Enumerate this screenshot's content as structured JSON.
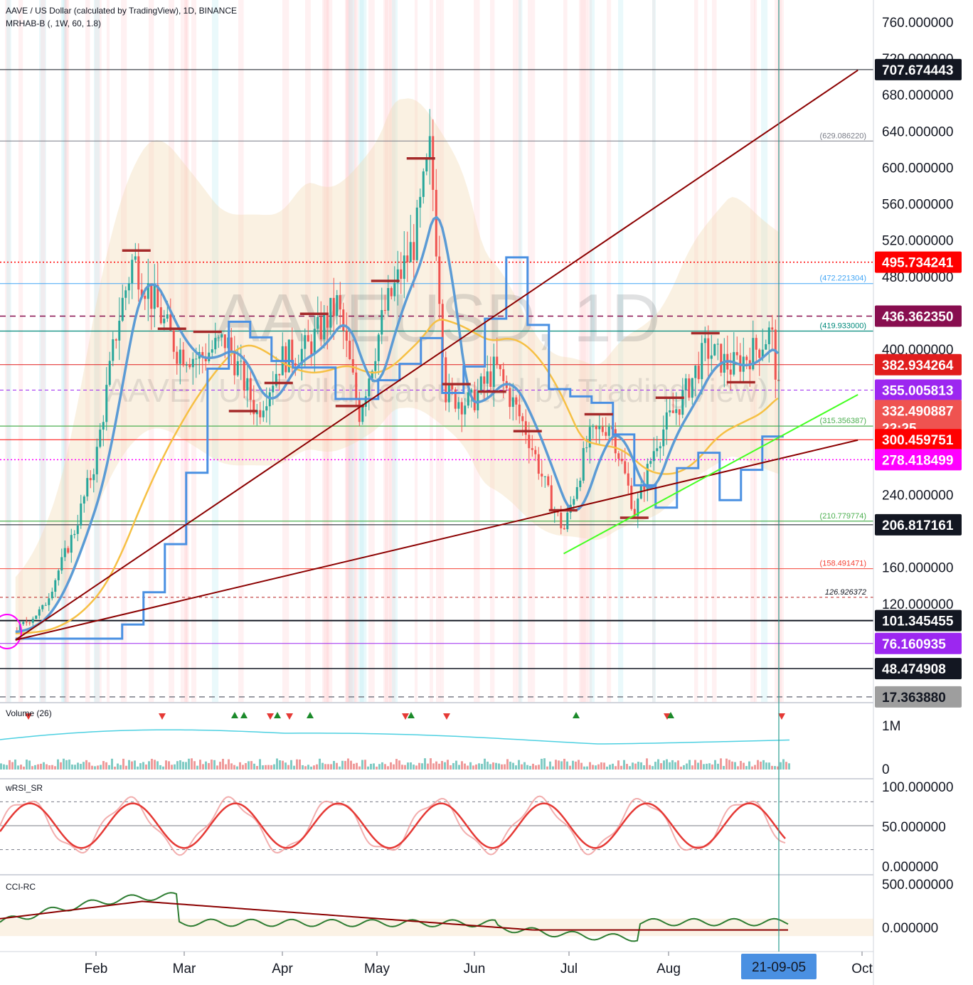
{
  "header": {
    "title": "AAVE / US Dollar (calculated by TradingView), 1D, BINANCE",
    "indicator": "MRHAB-B (, 1W, 60, 1.8)"
  },
  "watermark": {
    "main": "AAVEUSD, 1D",
    "sub": "AAVE / US Dollar (calculated by TradingView)"
  },
  "price_axis_ticks": [
    "760.000000",
    "720.000000",
    "680.000000",
    "640.000000",
    "600.000000",
    "560.000000",
    "520.000000",
    "480.000000",
    "400.000000",
    "240.000000",
    "160.000000",
    "120.000000"
  ],
  "price_tags": [
    {
      "price": 707.674443,
      "label": "707.674443",
      "bg": "#131722",
      "fg": "#ffffff"
    },
    {
      "price": 495.734241,
      "label": "495.734241",
      "bg": "#ff0000",
      "fg": "#ffffff"
    },
    {
      "price": 436.36235,
      "label": "436.362350",
      "bg": "#880e4f",
      "fg": "#ffffff"
    },
    {
      "price": 382.934264,
      "label": "382.934264",
      "bg": "#e11d1d",
      "fg": "#ffffff"
    },
    {
      "price": 355.005813,
      "label": "355.005813",
      "bg": "#9c27f0",
      "fg": "#ffffff"
    },
    {
      "price": 332.490887,
      "label": "332.490887",
      "bg": "#ef5350",
      "fg": "#ffffff",
      "sub": "22:25"
    },
    {
      "price": 300.459751,
      "label": "300.459751",
      "bg": "#ff0000",
      "fg": "#ffffff"
    },
    {
      "price": 278.418499,
      "label": "278.418499",
      "bg": "#ff00ff",
      "fg": "#ffffff"
    },
    {
      "price": 206.817161,
      "label": "206.817161",
      "bg": "#131722",
      "fg": "#ffffff"
    },
    {
      "price": 101.345455,
      "label": "101.345455",
      "bg": "#131722",
      "fg": "#ffffff"
    },
    {
      "price": 76.160935,
      "label": "76.160935",
      "bg": "#9c27f0",
      "fg": "#ffffff"
    },
    {
      "price": 48.474908,
      "label": "48.474908",
      "bg": "#131722",
      "fg": "#ffffff"
    },
    {
      "price": 17.36388,
      "label": "17.363880",
      "bg": "#9e9e9e",
      "fg": "#131722"
    }
  ],
  "level_labels": [
    {
      "price": 629.08622,
      "label": "(629.086220)",
      "color": "#787b86"
    },
    {
      "price": 472.221304,
      "label": "(472.221304)",
      "color": "#42a5f5"
    },
    {
      "price": 419.933,
      "label": "(419.933000)",
      "color": "#00897b"
    },
    {
      "price": 315.356387,
      "label": "(315.356387)",
      "color": "#4caf50"
    },
    {
      "price": 210.779774,
      "label": "(210.779774)",
      "color": "#4caf50"
    },
    {
      "price": 158.491471,
      "label": "(158.491471)",
      "color": "#f44336"
    },
    {
      "price": 126.926372,
      "label": "126.926372",
      "color": "#131722"
    }
  ],
  "time_axis": {
    "months": [
      "Feb",
      "Mar",
      "Apr",
      "May",
      "Jun",
      "Jul",
      "Aug",
      "Oct"
    ],
    "cursor_label": "21-09-05"
  },
  "panes": {
    "volume": {
      "title": "Volume (26)",
      "ticks": [
        "1M",
        "0"
      ]
    },
    "wrsi": {
      "title": "wRSI_SR",
      "ticks": [
        "100.000000",
        "50.000000",
        "0.000000"
      ]
    },
    "cci": {
      "title": "CCI-RC",
      "ticks": [
        "500.000000",
        "0.000000"
      ]
    }
  },
  "chart_data": {
    "type": "candlestick",
    "symbol": "AAVEUSD",
    "interval": "1D",
    "exchange": "BINANCE",
    "ylim": [
      0,
      780
    ],
    "close_points": [
      {
        "x": "2021-01-01",
        "y": 90
      },
      {
        "x": "2021-01-10",
        "y": 115
      },
      {
        "x": "2021-01-20",
        "y": 200
      },
      {
        "x": "2021-01-27",
        "y": 280
      },
      {
        "x": "2021-02-03",
        "y": 430
      },
      {
        "x": "2021-02-08",
        "y": 500
      },
      {
        "x": "2021-02-15",
        "y": 450
      },
      {
        "x": "2021-02-22",
        "y": 400
      },
      {
        "x": "2021-03-01",
        "y": 390
      },
      {
        "x": "2021-03-10",
        "y": 410
      },
      {
        "x": "2021-03-20",
        "y": 330
      },
      {
        "x": "2021-03-28",
        "y": 390
      },
      {
        "x": "2021-04-05",
        "y": 400
      },
      {
        "x": "2021-04-15",
        "y": 450
      },
      {
        "x": "2021-04-22",
        "y": 330
      },
      {
        "x": "2021-04-30",
        "y": 440
      },
      {
        "x": "2021-05-10",
        "y": 520
      },
      {
        "x": "2021-05-15",
        "y": 620
      },
      {
        "x": "2021-05-20",
        "y": 350
      },
      {
        "x": "2021-05-28",
        "y": 340
      },
      {
        "x": "2021-06-05",
        "y": 380
      },
      {
        "x": "2021-06-15",
        "y": 310
      },
      {
        "x": "2021-06-22",
        "y": 240
      },
      {
        "x": "2021-06-27",
        "y": 200
      },
      {
        "x": "2021-07-05",
        "y": 300
      },
      {
        "x": "2021-07-12",
        "y": 320
      },
      {
        "x": "2021-07-20",
        "y": 220
      },
      {
        "x": "2021-07-27",
        "y": 300
      },
      {
        "x": "2021-08-05",
        "y": 350
      },
      {
        "x": "2021-08-12",
        "y": 400
      },
      {
        "x": "2021-08-20",
        "y": 380
      },
      {
        "x": "2021-08-28",
        "y": 400
      },
      {
        "x": "2021-09-02",
        "y": 420
      },
      {
        "x": "2021-09-05",
        "y": 332.490887
      }
    ],
    "horizontal_levels": [
      707.674443,
      629.08622,
      495.734241,
      472.221304,
      436.36235,
      419.933,
      382.934264,
      355.005813,
      315.356387,
      300.459751,
      278.418499,
      210.779774,
      206.817161,
      158.491471,
      126.926372,
      101.345455,
      76.160935,
      48.474908,
      17.36388
    ],
    "trendlines": [
      {
        "color": "#8b0000",
        "from": {
          "x": "2021-01-01",
          "y": 80
        },
        "to": {
          "x": "2021-09-30",
          "y": 707
        }
      },
      {
        "color": "#8b0000",
        "from": {
          "x": "2021-01-01",
          "y": 80
        },
        "to": {
          "x": "2021-09-30",
          "y": 300
        }
      },
      {
        "color": "#44ff22",
        "from": {
          "x": "2021-06-27",
          "y": 175
        },
        "to": {
          "x": "2021-09-30",
          "y": 350
        }
      }
    ]
  }
}
